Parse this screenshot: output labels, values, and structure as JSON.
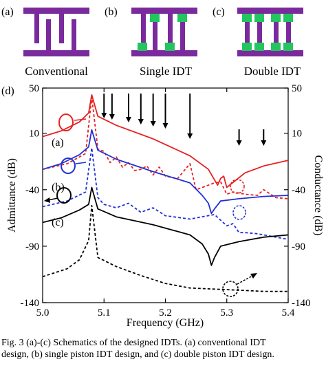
{
  "panels": {
    "a": {
      "letter": "(a)",
      "label": "Conventional"
    },
    "b": {
      "letter": "(b)",
      "label": "Single IDT"
    },
    "c": {
      "letter": "(c)",
      "label": "Double IDT"
    },
    "d": {
      "letter": "(d)"
    }
  },
  "colors": {
    "electrode": "#7a2a9c",
    "piston": "#22c55e",
    "series_a": "#e82020",
    "series_b": "#1f2fd6",
    "series_c": "#000000"
  },
  "chart_data": {
    "type": "line",
    "xlabel": "Frequency (GHz)",
    "ylabel": "Admittance (dB)",
    "y2label": "Conductance (dB)",
    "xlim": [
      5.0,
      5.4
    ],
    "ylim": [
      -140,
      50
    ],
    "xticks": [
      5.0,
      5.1,
      5.2,
      5.3,
      5.4
    ],
    "xtick_labels": [
      "5.0",
      "5.1",
      "5.2",
      "5.3",
      "5.4"
    ],
    "yticks": [
      50,
      10,
      -40,
      -90,
      -140
    ],
    "ytick_labels": [
      "50",
      "10",
      "-40",
      "-90",
      "-140"
    ],
    "y2ticks": [
      50,
      10,
      -40,
      -90,
      -140
    ],
    "y2tick_labels": [
      "50",
      "10",
      "-40",
      "-90",
      "-140"
    ],
    "series_labels": [
      "(a)",
      "(b)",
      "(c)"
    ],
    "series": [
      {
        "key": "a",
        "style": "solid",
        "color": "#e82020",
        "x": [
          5.0,
          5.03,
          5.06,
          5.075,
          5.08,
          5.09,
          5.12,
          5.18,
          5.24,
          5.27,
          5.285,
          5.29,
          5.295,
          5.3,
          5.33,
          5.36,
          5.4
        ],
        "y": [
          7,
          12,
          20,
          28,
          44,
          25,
          17,
          5,
          -10,
          -22,
          -36,
          -30,
          -28,
          -38,
          -25,
          -19,
          -14
        ]
      },
      {
        "key": "a",
        "style": "dashed",
        "color": "#e82020",
        "x": [
          5.0,
          5.04,
          5.07,
          5.08,
          5.09,
          5.1,
          5.11,
          5.12,
          5.13,
          5.14,
          5.15,
          5.16,
          5.17,
          5.18,
          5.19,
          5.2,
          5.22,
          5.24,
          5.25,
          5.28,
          5.29,
          5.3,
          5.31,
          5.33,
          5.35,
          5.36,
          5.38,
          5.4
        ],
        "y": [
          -22,
          -17,
          -8,
          42,
          -4,
          -6,
          -16,
          -11,
          -20,
          -16,
          -23,
          -22,
          -19,
          -27,
          -20,
          -28,
          -30,
          -17,
          -40,
          -34,
          -33,
          -44,
          -42,
          -44,
          -45,
          -40,
          -47,
          -48
        ]
      },
      {
        "key": "b",
        "style": "solid",
        "color": "#1f2fd6",
        "x": [
          5.0,
          5.03,
          5.06,
          5.075,
          5.08,
          5.09,
          5.12,
          5.18,
          5.24,
          5.26,
          5.27,
          5.275,
          5.28,
          5.29,
          5.32,
          5.36,
          5.4
        ],
        "y": [
          -22,
          -17,
          -9,
          -2,
          13,
          -5,
          -13,
          -24,
          -34,
          -45,
          -52,
          -61,
          -57,
          -50,
          -48,
          -46,
          -45
        ]
      },
      {
        "key": "b",
        "style": "dashed",
        "color": "#1f2fd6",
        "x": [
          5.0,
          5.04,
          5.07,
          5.08,
          5.09,
          5.1,
          5.12,
          5.14,
          5.16,
          5.18,
          5.2,
          5.24,
          5.28,
          5.3,
          5.31,
          5.32,
          5.33,
          5.35,
          5.38,
          5.4
        ],
        "y": [
          -55,
          -50,
          -42,
          -3,
          -47,
          -53,
          -56,
          -52,
          -60,
          -56,
          -63,
          -66,
          -62,
          -72,
          -70,
          -78,
          -78,
          -79,
          -82,
          -84
        ]
      },
      {
        "key": "c",
        "style": "solid",
        "color": "#000000",
        "x": [
          5.0,
          5.03,
          5.06,
          5.075,
          5.08,
          5.09,
          5.12,
          5.18,
          5.24,
          5.26,
          5.27,
          5.275,
          5.28,
          5.29,
          5.32,
          5.36,
          5.4
        ],
        "y": [
          -69,
          -65,
          -58,
          -53,
          -38,
          -57,
          -64,
          -71,
          -80,
          -88,
          -97,
          -107,
          -100,
          -90,
          -86,
          -82,
          -80
        ]
      },
      {
        "key": "c",
        "style": "dashed",
        "color": "#000000",
        "x": [
          5.0,
          5.04,
          5.06,
          5.075,
          5.08,
          5.09,
          5.12,
          5.16,
          5.2,
          5.24,
          5.28,
          5.32,
          5.36,
          5.4
        ],
        "y": [
          -117,
          -110,
          -102,
          -85,
          -54,
          -100,
          -108,
          -116,
          -123,
          -127,
          -128,
          -129,
          -130,
          -130
        ]
      }
    ],
    "arrow_x": [
      5.1,
      5.113,
      5.14,
      5.16,
      5.18,
      5.2,
      5.24,
      5.32,
      5.36
    ]
  },
  "caption": {
    "line1": "Fig. 3 (a)-(c) Schematics of the designed IDTs. (a) conventional IDT",
    "line2": "design, (b) single piston IDT design, and (c) double piston IDT design."
  }
}
